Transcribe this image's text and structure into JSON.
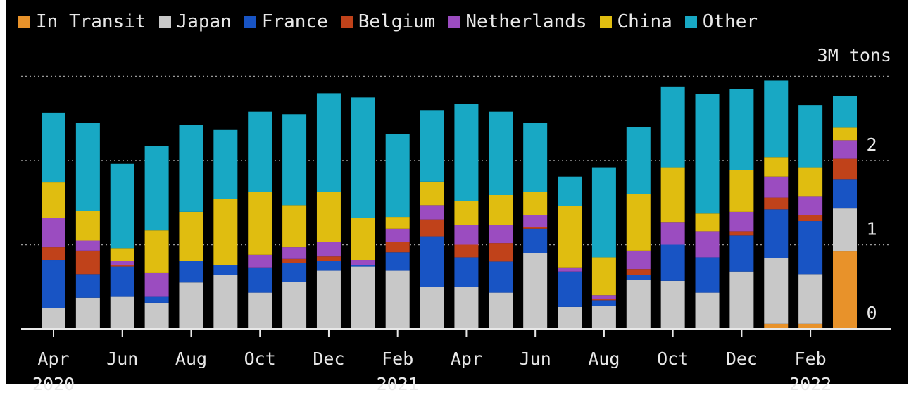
{
  "chart_data": {
    "type": "bar",
    "stacked": true,
    "title": "",
    "unit_label": "3M tons",
    "ylim": [
      0,
      3
    ],
    "yticks": [
      "0",
      "1",
      "2"
    ],
    "grid": true,
    "legend_position": "top",
    "x_tick_labels": [
      "Apr",
      "Jun",
      "Aug",
      "Oct",
      "Dec",
      "Feb",
      "Apr",
      "Jun",
      "Aug",
      "Oct",
      "Dec",
      "Feb"
    ],
    "x_tick_months": [
      "2020-04",
      "2020-06",
      "2020-08",
      "2020-10",
      "2020-12",
      "2021-02",
      "2021-04",
      "2021-06",
      "2021-08",
      "2021-10",
      "2021-12",
      "2022-02"
    ],
    "year_labels": [
      {
        "label": "2020",
        "month": "2020-04"
      },
      {
        "label": "2021",
        "month": "2021-02"
      },
      {
        "label": "2022",
        "month": "2022-02"
      }
    ],
    "categories": [
      "2020-04",
      "2020-05",
      "2020-06",
      "2020-07",
      "2020-08",
      "2020-09",
      "2020-10",
      "2020-11",
      "2020-12",
      "2021-01",
      "2021-02",
      "2021-03",
      "2021-04",
      "2021-05",
      "2021-06",
      "2021-07",
      "2021-08",
      "2021-09",
      "2021-10",
      "2021-11",
      "2021-12",
      "2022-01",
      "2022-02",
      "2022-03"
    ],
    "series": [
      {
        "name": "In Transit",
        "color": "#e8922a",
        "values": [
          0,
          0,
          0,
          0,
          0,
          0,
          0,
          0,
          0,
          0,
          0,
          0,
          0,
          0,
          0,
          0,
          0,
          0,
          0,
          0,
          0,
          0.06,
          0.06,
          0.92
        ]
      },
      {
        "name": "Japan",
        "color": "#c8c8c8",
        "values": [
          0.25,
          0.37,
          0.38,
          0.31,
          0.55,
          0.64,
          0.43,
          0.56,
          0.69,
          0.74,
          0.69,
          0.5,
          0.5,
          0.43,
          0.9,
          0.26,
          0.27,
          0.58,
          0.57,
          0.43,
          0.68,
          0.78,
          0.59,
          0.51
        ]
      },
      {
        "name": "France",
        "color": "#1854c4",
        "values": [
          0.57,
          0.28,
          0.36,
          0.07,
          0.26,
          0.12,
          0.3,
          0.22,
          0.12,
          0.02,
          0.22,
          0.6,
          0.35,
          0.37,
          0.29,
          0.42,
          0.07,
          0.06,
          0.43,
          0.42,
          0.43,
          0.58,
          0.63,
          0.35
        ]
      },
      {
        "name": "Belgium",
        "color": "#c0421a",
        "values": [
          0.15,
          0.28,
          0.02,
          0,
          0,
          0,
          0,
          0.05,
          0.05,
          0,
          0.12,
          0.2,
          0.15,
          0.22,
          0.02,
          0,
          0.02,
          0.07,
          0,
          0,
          0.05,
          0.14,
          0.07,
          0.24
        ]
      },
      {
        "name": "Netherlands",
        "color": "#9b4cc0",
        "values": [
          0.35,
          0.12,
          0.05,
          0.29,
          0,
          0,
          0.15,
          0.14,
          0.17,
          0.06,
          0.16,
          0.17,
          0.23,
          0.21,
          0.14,
          0.05,
          0.04,
          0.22,
          0.27,
          0.31,
          0.23,
          0.25,
          0.22,
          0.22
        ]
      },
      {
        "name": "China",
        "color": "#e0bd10",
        "values": [
          0.42,
          0.35,
          0.15,
          0.5,
          0.58,
          0.78,
          0.75,
          0.5,
          0.6,
          0.5,
          0.14,
          0.28,
          0.29,
          0.36,
          0.28,
          0.73,
          0.45,
          0.67,
          0.65,
          0.21,
          0.5,
          0.23,
          0.35,
          0.15
        ]
      },
      {
        "name": "Other",
        "color": "#18a8c4",
        "values": [
          0.83,
          1.05,
          1.0,
          1.0,
          1.03,
          0.83,
          0.95,
          1.08,
          1.17,
          1.43,
          0.98,
          0.85,
          1.15,
          0.99,
          0.82,
          0.35,
          1.07,
          0.8,
          0.96,
          1.42,
          0.96,
          0.91,
          0.74,
          0.38
        ]
      }
    ]
  }
}
